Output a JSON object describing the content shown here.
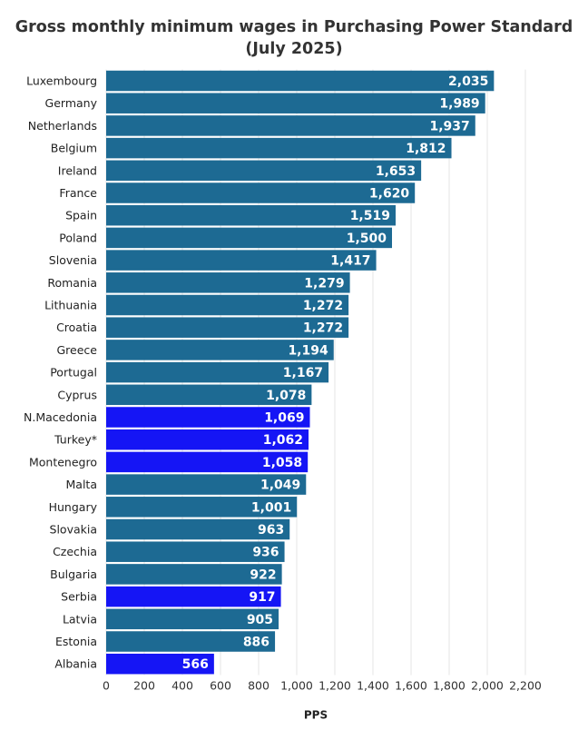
{
  "chart_data": {
    "type": "bar",
    "orientation": "horizontal",
    "title_line1": "Gross monthly minimum wages in Purchasing Power Standard",
    "title_line2": "(July 2025)",
    "xlabel": "PPS",
    "xlim": [
      0,
      2200
    ],
    "xticks": [
      0,
      200,
      400,
      600,
      800,
      1000,
      1200,
      1400,
      1600,
      1800,
      2000,
      2200
    ],
    "xtick_labels": [
      "0",
      "200",
      "400",
      "600",
      "800",
      "1,000",
      "1,200",
      "1,400",
      "1,600",
      "1,800",
      "2,000",
      "2,200"
    ],
    "grid": "vertical",
    "colors": {
      "default": "#1d6a93",
      "highlight": "#1515f5"
    },
    "categories": [
      "Luxembourg",
      "Germany",
      "Netherlands",
      "Belgium",
      "Ireland",
      "France",
      "Spain",
      "Poland",
      "Slovenia",
      "Romania",
      "Lithuania",
      "Croatia",
      "Greece",
      "Portugal",
      "Cyprus",
      "N.Macedonia",
      "Turkey*",
      "Montenegro",
      "Malta",
      "Hungary",
      "Slovakia",
      "Czechia",
      "Bulgaria",
      "Serbia",
      "Latvia",
      "Estonia",
      "Albania"
    ],
    "values": [
      2035,
      1989,
      1937,
      1812,
      1653,
      1620,
      1519,
      1500,
      1417,
      1279,
      1272,
      1272,
      1194,
      1167,
      1078,
      1069,
      1062,
      1058,
      1049,
      1001,
      963,
      936,
      922,
      917,
      905,
      886,
      566
    ],
    "value_labels": [
      "2,035",
      "1,989",
      "1,937",
      "1,812",
      "1,653",
      "1,620",
      "1,519",
      "1,500",
      "1,417",
      "1,279",
      "1,272",
      "1,272",
      "1,194",
      "1,167",
      "1,078",
      "1,069",
      "1,062",
      "1,058",
      "1,049",
      "1,001",
      "963",
      "936",
      "922",
      "917",
      "905",
      "886",
      "566"
    ],
    "highlighted": [
      "N.Macedonia",
      "Turkey*",
      "Montenegro",
      "Serbia",
      "Albania"
    ]
  }
}
